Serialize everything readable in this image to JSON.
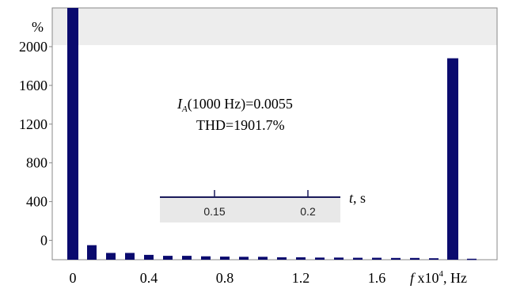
{
  "chart_data": {
    "type": "bar",
    "ylabel": "%",
    "xlabel_var": "f",
    "xlabel_rest": " x10",
    "xlabel_exp": "4",
    "xlabel_unit": ", Hz",
    "y_ticks": [
      "0",
      "400",
      "800",
      "1200",
      "1600",
      "2000"
    ],
    "x_ticks": [
      "0",
      "0.4",
      "0.8",
      "1.2",
      "1.6"
    ],
    "xlim": [
      -0.1,
      2.1
    ],
    "ylim": [
      -200,
      2400
    ],
    "annotation": {
      "line1_var": "I",
      "line1_sub": "A",
      "line1_rest": "(1000 Hz)=0.0055",
      "line2": "THD=1901.7%"
    },
    "bars": [
      {
        "x": 0.0,
        "y": 2400
      },
      {
        "x": 0.1,
        "y": -50
      },
      {
        "x": 0.2,
        "y": -130
      },
      {
        "x": 0.3,
        "y": -130
      },
      {
        "x": 0.4,
        "y": -150
      },
      {
        "x": 0.5,
        "y": -160
      },
      {
        "x": 0.6,
        "y": -160
      },
      {
        "x": 0.7,
        "y": -165
      },
      {
        "x": 0.8,
        "y": -168
      },
      {
        "x": 0.9,
        "y": -170
      },
      {
        "x": 1.0,
        "y": -170
      },
      {
        "x": 1.1,
        "y": -175
      },
      {
        "x": 1.2,
        "y": -175
      },
      {
        "x": 1.3,
        "y": -178
      },
      {
        "x": 1.4,
        "y": -178
      },
      {
        "x": 1.5,
        "y": -180
      },
      {
        "x": 1.6,
        "y": -180
      },
      {
        "x": 1.7,
        "y": -182
      },
      {
        "x": 1.8,
        "y": -182
      },
      {
        "x": 1.9,
        "y": -185
      },
      {
        "x": 2.0,
        "y": 1880
      },
      {
        "x": 2.1,
        "y": -190
      }
    ],
    "inset": {
      "time_label_var": "t",
      "time_label_unit": ", s",
      "ticks": [
        "0.15",
        "0.2"
      ]
    },
    "colors": {
      "bar": "#0a0a6e",
      "header_band": "#ededed",
      "inset_fill": "#e8e8e8",
      "axis": "#888888"
    }
  }
}
